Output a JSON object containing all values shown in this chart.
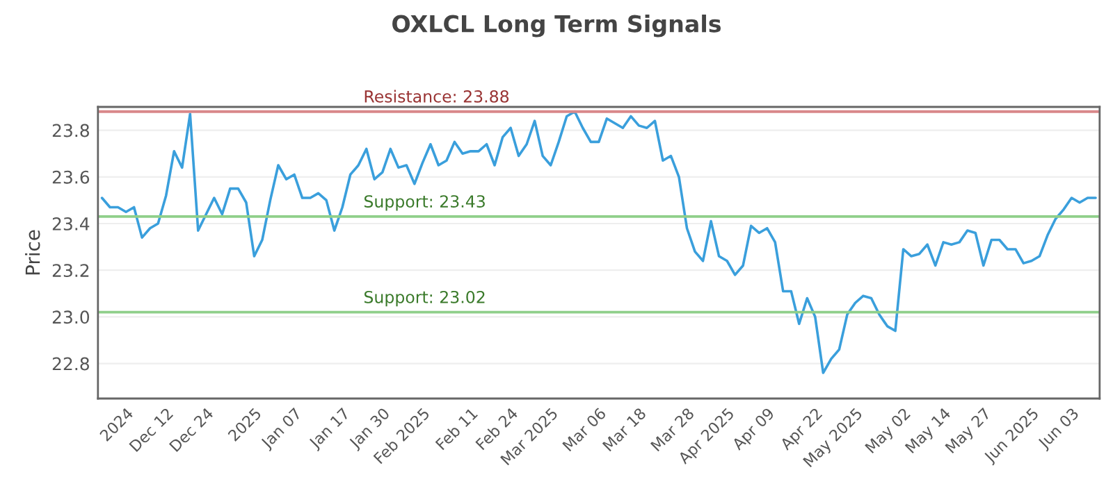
{
  "chart_data": {
    "type": "line",
    "title": "OXLCL Long Term Signals",
    "ylabel": "Price",
    "categories": [
      null,
      null,
      null,
      "2024",
      null,
      null,
      null,
      null,
      "Dec 12",
      null,
      null,
      null,
      null,
      "Dec 24",
      null,
      null,
      null,
      null,
      null,
      "2025",
      null,
      null,
      null,
      null,
      "Jan 07",
      null,
      null,
      null,
      null,
      null,
      "Jan 17",
      null,
      null,
      null,
      null,
      "Jan 30",
      null,
      null,
      null,
      null,
      "Feb 2025",
      null,
      null,
      null,
      null,
      null,
      "Feb 11",
      null,
      null,
      null,
      null,
      "Feb 24",
      null,
      null,
      null,
      null,
      "Mar 2025",
      null,
      null,
      null,
      null,
      null,
      "Mar 06",
      null,
      null,
      null,
      null,
      "Mar 18",
      null,
      null,
      null,
      null,
      null,
      "Mar 28",
      null,
      null,
      null,
      null,
      "Apr 2025",
      null,
      null,
      null,
      null,
      "Apr 09",
      null,
      null,
      null,
      null,
      null,
      "Apr 22",
      null,
      null,
      null,
      null,
      "May 2025",
      null,
      null,
      null,
      null,
      null,
      "May 02",
      null,
      null,
      null,
      null,
      "May 14",
      null,
      null,
      null,
      null,
      "May 27",
      null,
      null,
      null,
      null,
      null,
      "Jun 2025",
      null,
      null,
      null,
      null,
      "Jun 03",
      null,
      null,
      null
    ],
    "series": [
      {
        "color": "#3a9fdc",
        "values": [
          23.51,
          23.47,
          23.47,
          23.45,
          23.47,
          23.34,
          23.38,
          23.4,
          23.52,
          23.71,
          23.64,
          23.87,
          23.37,
          23.44,
          23.51,
          23.44,
          23.55,
          23.55,
          23.49,
          23.26,
          23.33,
          23.5,
          23.65,
          23.59,
          23.61,
          23.51,
          23.51,
          23.53,
          23.5,
          23.37,
          23.47,
          23.61,
          23.65,
          23.72,
          23.59,
          23.62,
          23.72,
          23.64,
          23.65,
          23.57,
          23.66,
          23.74,
          23.65,
          23.67,
          23.75,
          23.7,
          23.71,
          23.71,
          23.74,
          23.65,
          23.77,
          23.81,
          23.69,
          23.74,
          23.84,
          23.69,
          23.65,
          23.75,
          23.86,
          23.88,
          23.81,
          23.75,
          23.75,
          23.85,
          23.83,
          23.81,
          23.86,
          23.82,
          23.81,
          23.84,
          23.67,
          23.69,
          23.6,
          23.38,
          23.28,
          23.24,
          23.41,
          23.26,
          23.24,
          23.18,
          23.22,
          23.39,
          23.36,
          23.38,
          23.32,
          23.11,
          23.11,
          22.97,
          23.08,
          23.0,
          22.76,
          22.82,
          22.86,
          23.01,
          23.06,
          23.09,
          23.08,
          23.01,
          22.96,
          22.94,
          23.29,
          23.26,
          23.27,
          23.31,
          23.22,
          23.32,
          23.31,
          23.32,
          23.37,
          23.36,
          23.22,
          23.33,
          23.33,
          23.29,
          23.29,
          23.23,
          23.24,
          23.26,
          23.35,
          23.42,
          23.46,
          23.51,
          23.49,
          23.51,
          23.51
        ]
      }
    ],
    "ylim": [
      22.65,
      23.9
    ],
    "yticks": [
      22.8,
      {
        "value": 23.0,
        "label": "23.0"
      },
      23.2,
      23.4,
      23.6,
      23.8
    ],
    "grid": "y",
    "ref_lines": [
      {
        "axis": "y",
        "value": 23.88,
        "label": "Resistance: 23.88",
        "color": "#d9888a"
      },
      {
        "axis": "y",
        "value": 23.43,
        "label": "Support: 23.43",
        "color": "#8fcf8a"
      },
      {
        "axis": "y",
        "value": 23.02,
        "label": "Support: 23.02",
        "color": "#8fcf8a"
      }
    ]
  }
}
